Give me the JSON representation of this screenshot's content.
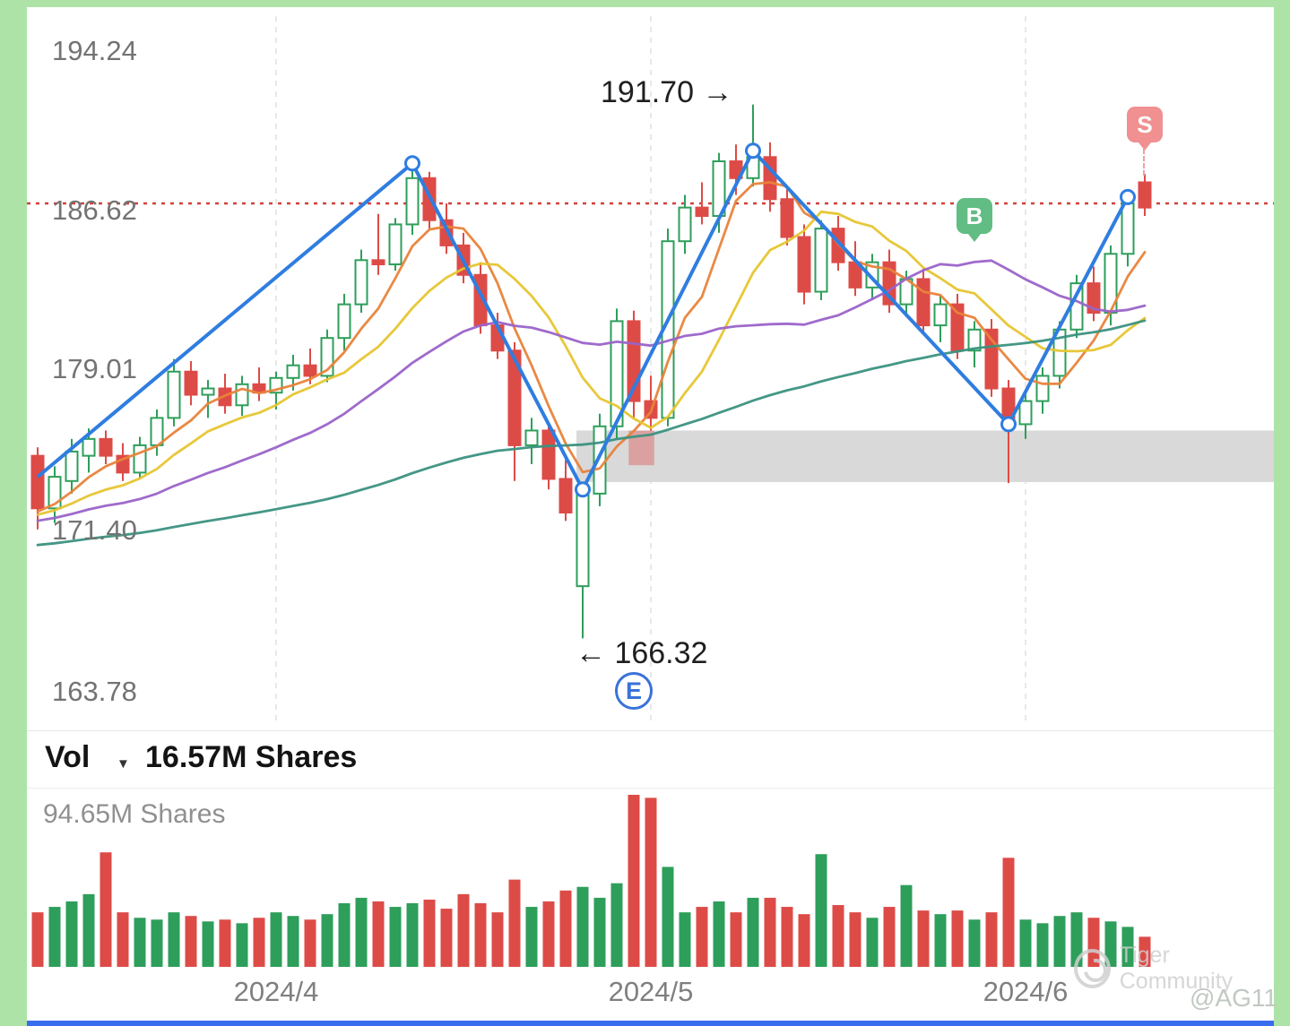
{
  "app": {
    "watermark_text": "Tiger Community",
    "user_handle": "@AG11"
  },
  "colors": {
    "up": "#2e9e5b",
    "down": "#dd4b47",
    "ma5": "#e8833a",
    "ma10": "#e6c52f",
    "ma20": "#9a63c9",
    "ma60": "#3a9180",
    "trend_line": "#2f7de0",
    "price_line": "#d4403a",
    "buy_badge": "#61bd83",
    "sell_badge": "#f09090",
    "support_zone": "#d9d9d9",
    "gap_marker": "rgba(224,70,70,0.38)",
    "gridline": "#e0e0e0"
  },
  "price_chart": {
    "y_axis_labels": [
      "194.24",
      "186.62",
      "179.01",
      "171.40",
      "163.78"
    ],
    "annotations": {
      "high_label": "191.70 →",
      "low_label": "← 166.32",
      "earnings_marker": "E",
      "buy_badge": "B",
      "sell_badge": "S"
    }
  },
  "volume_panel": {
    "title": "Vol",
    "current_volume": "16.57M Shares",
    "max_scale": "94.65M Shares"
  },
  "x_axis_labels": [
    "2024/4",
    "2024/5",
    "2024/6"
  ],
  "chart_data": {
    "type": "candlestick",
    "title": "",
    "price_axis": {
      "min": 163.78,
      "max": 194.24,
      "ticks": [
        194.24,
        186.62,
        179.01,
        171.4,
        163.78
      ]
    },
    "x_axis": {
      "labels": [
        "2024/4",
        "2024/5",
        "2024/6"
      ],
      "gridline_candle_indices": [
        14,
        36,
        58
      ]
    },
    "annotations": {
      "swing_high": 191.7,
      "swing_low": 166.32,
      "current_price_line": 187.0,
      "earnings_marker_candle_index": 35,
      "buy_badge_candle_index": 55,
      "sell_badge_candle_index": 65
    },
    "ma_periods": [
      5,
      10,
      20,
      60
    ],
    "zigzag_points": [
      [
        0,
        174.0
      ],
      [
        22,
        188.9
      ],
      [
        32,
        173.4
      ],
      [
        42,
        189.5
      ],
      [
        57,
        176.5
      ],
      [
        64,
        187.3
      ]
    ],
    "support_zone": {
      "start_candle_index": 32,
      "price_top": 176.2,
      "price_bottom": 173.75
    },
    "gap_marker": {
      "start_candle_index": 34.7,
      "end_candle_index": 36.2,
      "price_top": 176.2,
      "price_bottom": 174.55
    },
    "volume_max_shares_m": 94.65,
    "current_volume_shares_m": 16.57,
    "candles_ohlcv": [
      [
        175.0,
        175.4,
        171.5,
        172.5,
        30
      ],
      [
        172.5,
        174.5,
        171.8,
        174.0,
        33
      ],
      [
        173.8,
        175.8,
        173.2,
        175.2,
        36
      ],
      [
        175.0,
        176.3,
        174.2,
        175.8,
        40
      ],
      [
        175.8,
        176.2,
        174.6,
        175.0,
        63
      ],
      [
        175.0,
        175.6,
        173.8,
        174.2,
        30
      ],
      [
        174.2,
        175.9,
        173.9,
        175.5,
        27
      ],
      [
        175.5,
        177.2,
        175.0,
        176.8,
        26
      ],
      [
        176.8,
        179.6,
        176.4,
        179.0,
        30
      ],
      [
        179.0,
        179.5,
        177.4,
        177.9,
        28
      ],
      [
        177.9,
        178.6,
        176.8,
        178.2,
        25
      ],
      [
        178.2,
        178.9,
        177.0,
        177.4,
        26
      ],
      [
        177.4,
        178.8,
        176.9,
        178.4,
        24
      ],
      [
        178.4,
        179.2,
        177.6,
        178.0,
        27
      ],
      [
        178.0,
        179.0,
        177.2,
        178.7,
        30
      ],
      [
        178.7,
        179.8,
        178.1,
        179.3,
        28
      ],
      [
        179.3,
        180.1,
        178.4,
        178.8,
        26
      ],
      [
        178.8,
        181.0,
        178.5,
        180.6,
        29
      ],
      [
        180.6,
        182.7,
        180.0,
        182.2,
        35
      ],
      [
        182.2,
        184.8,
        181.8,
        184.3,
        38
      ],
      [
        184.3,
        186.5,
        183.6,
        184.1,
        36
      ],
      [
        184.1,
        186.3,
        183.8,
        186.0,
        33
      ],
      [
        186.0,
        188.6,
        185.5,
        188.2,
        35
      ],
      [
        188.2,
        188.5,
        185.8,
        186.2,
        37
      ],
      [
        186.2,
        187.0,
        184.6,
        185.0,
        32
      ],
      [
        185.0,
        185.6,
        183.2,
        183.6,
        40
      ],
      [
        183.6,
        184.2,
        180.8,
        181.2,
        35
      ],
      [
        181.2,
        181.8,
        179.6,
        180.0,
        30
      ],
      [
        180.0,
        180.4,
        173.8,
        175.5,
        48
      ],
      [
        175.5,
        176.8,
        174.6,
        176.2,
        33
      ],
      [
        176.2,
        176.6,
        173.4,
        173.9,
        36
      ],
      [
        173.9,
        174.8,
        171.9,
        172.3,
        42
      ],
      [
        168.8,
        173.6,
        166.32,
        173.2,
        44
      ],
      [
        173.2,
        177.0,
        172.6,
        176.4,
        38
      ],
      [
        176.4,
        182.0,
        175.8,
        181.4,
        46
      ],
      [
        181.4,
        181.9,
        176.8,
        177.6,
        94.65
      ],
      [
        177.6,
        178.8,
        176.2,
        176.8,
        93.0
      ],
      [
        176.8,
        185.8,
        176.4,
        185.2,
        55
      ],
      [
        185.2,
        187.4,
        184.6,
        186.8,
        30
      ],
      [
        186.8,
        188.0,
        186.0,
        186.4,
        33
      ],
      [
        186.4,
        189.4,
        185.6,
        189.0,
        36
      ],
      [
        189.0,
        189.8,
        187.4,
        188.2,
        30
      ],
      [
        188.2,
        191.7,
        187.8,
        189.2,
        38
      ],
      [
        189.2,
        189.9,
        186.6,
        187.2,
        38
      ],
      [
        187.2,
        187.8,
        185.0,
        185.4,
        33
      ],
      [
        185.4,
        186.0,
        182.2,
        182.8,
        29
      ],
      [
        182.8,
        186.2,
        182.4,
        185.8,
        62
      ],
      [
        185.8,
        186.4,
        183.8,
        184.2,
        34
      ],
      [
        184.2,
        185.2,
        182.6,
        183.0,
        30
      ],
      [
        183.0,
        184.6,
        182.4,
        184.2,
        27
      ],
      [
        184.2,
        184.8,
        181.8,
        182.2,
        33
      ],
      [
        182.2,
        183.8,
        181.6,
        183.4,
        45
      ],
      [
        183.4,
        183.9,
        180.8,
        181.2,
        31
      ],
      [
        181.2,
        182.6,
        180.4,
        182.2,
        29
      ],
      [
        182.2,
        182.7,
        179.6,
        180.0,
        31
      ],
      [
        180.0,
        181.4,
        179.2,
        181.0,
        26
      ],
      [
        181.0,
        181.5,
        177.8,
        178.2,
        30
      ],
      [
        178.2,
        178.6,
        173.7,
        176.5,
        60
      ],
      [
        176.5,
        178.0,
        175.8,
        177.6,
        26
      ],
      [
        177.6,
        179.2,
        177.0,
        178.8,
        24
      ],
      [
        178.8,
        181.4,
        178.2,
        181.0,
        28
      ],
      [
        181.0,
        183.6,
        180.6,
        183.2,
        30
      ],
      [
        183.2,
        184.0,
        181.4,
        181.8,
        27
      ],
      [
        181.8,
        185.0,
        181.2,
        184.6,
        25
      ],
      [
        184.6,
        187.4,
        184.0,
        187.0,
        22
      ],
      [
        188.0,
        188.4,
        186.4,
        186.8,
        16.57
      ]
    ]
  }
}
